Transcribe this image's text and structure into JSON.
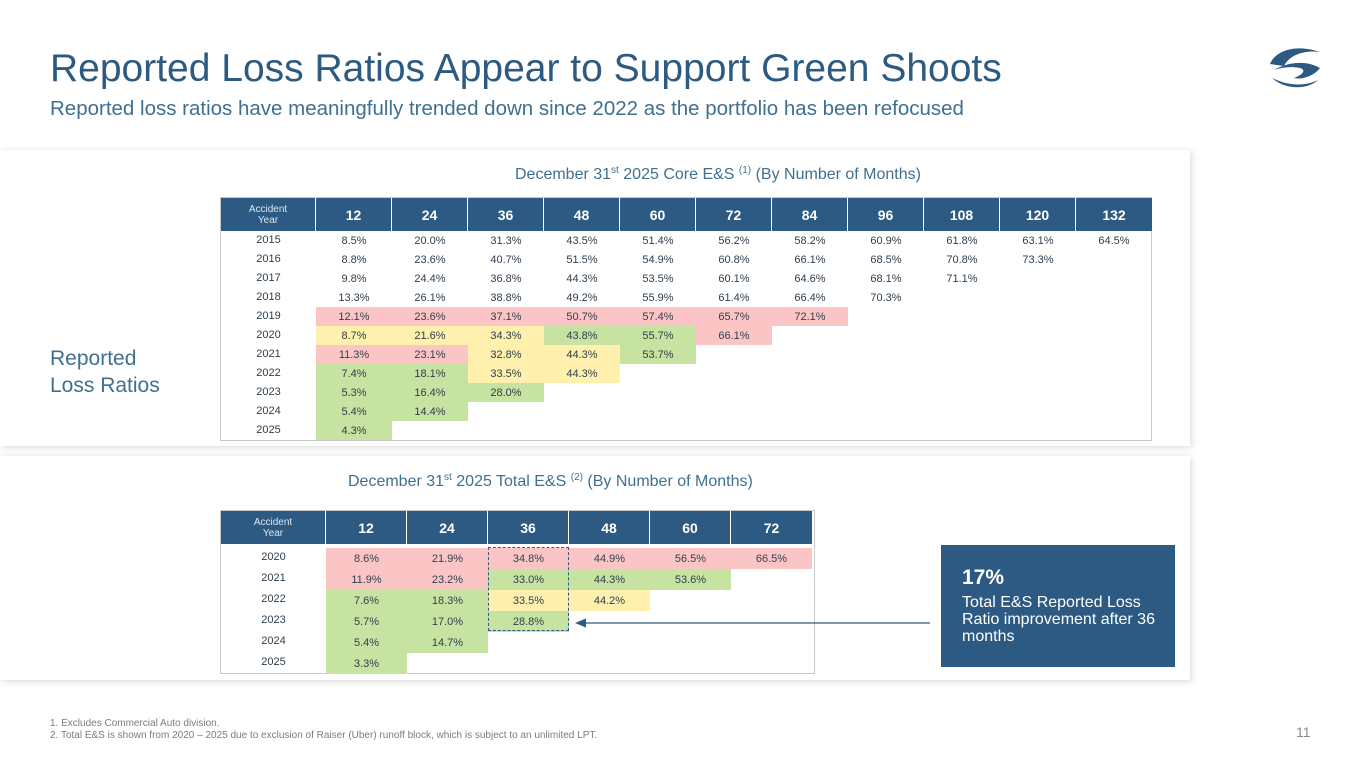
{
  "header": {
    "title": "Reported Loss Ratios Appear to Support Green Shoots",
    "subtitle": "Reported loss ratios have meaningfully trended down since 2022 as the portfolio has been refocused"
  },
  "side_label": {
    "line1": "Reported",
    "line2": "Loss Ratios"
  },
  "colors": {
    "navy": "#2c5a82",
    "red": "#fcc5c5",
    "yellow": "#fff0ad",
    "green": "#c7e3a1"
  },
  "logo": {
    "icon": "wave-s-logo-icon"
  },
  "core_table": {
    "caption_pre": "December 31",
    "caption_sup": "st",
    "caption_mid": " 2025 Core E&S ",
    "caption_ref": "(1)",
    "caption_post": " (By Number of Months)",
    "first_header_line1": "Accident",
    "first_header_line2": "Year",
    "columns": [
      "12",
      "24",
      "36",
      "48",
      "60",
      "72",
      "84",
      "96",
      "108",
      "120",
      "132"
    ],
    "rows": [
      {
        "year": "2015",
        "values": [
          "8.5%",
          "20.0%",
          "31.3%",
          "43.5%",
          "51.4%",
          "56.2%",
          "58.2%",
          "60.9%",
          "61.8%",
          "63.1%",
          "64.5%"
        ],
        "colors": [
          "",
          "",
          "",
          "",
          "",
          "",
          "",
          "",
          "",
          "",
          ""
        ]
      },
      {
        "year": "2016",
        "values": [
          "8.8%",
          "23.6%",
          "40.7%",
          "51.5%",
          "54.9%",
          "60.8%",
          "66.1%",
          "68.5%",
          "70.8%",
          "73.3%"
        ],
        "colors": [
          "",
          "",
          "",
          "",
          "",
          "",
          "",
          "",
          "",
          ""
        ]
      },
      {
        "year": "2017",
        "values": [
          "9.8%",
          "24.4%",
          "36.8%",
          "44.3%",
          "53.5%",
          "60.1%",
          "64.6%",
          "68.1%",
          "71.1%"
        ],
        "colors": [
          "",
          "",
          "",
          "",
          "",
          "",
          "",
          "",
          ""
        ]
      },
      {
        "year": "2018",
        "values": [
          "13.3%",
          "26.1%",
          "38.8%",
          "49.2%",
          "55.9%",
          "61.4%",
          "66.4%",
          "70.3%"
        ],
        "colors": [
          "",
          "",
          "",
          "",
          "",
          "",
          "",
          ""
        ]
      },
      {
        "year": "2019",
        "values": [
          "12.1%",
          "23.6%",
          "37.1%",
          "50.7%",
          "57.4%",
          "65.7%",
          "72.1%"
        ],
        "colors": [
          "red",
          "red",
          "red",
          "red",
          "red",
          "red",
          "red"
        ]
      },
      {
        "year": "2020",
        "values": [
          "8.7%",
          "21.6%",
          "34.3%",
          "43.8%",
          "55.7%",
          "66.1%"
        ],
        "colors": [
          "yellow",
          "yellow",
          "yellow",
          "green",
          "green",
          "red"
        ]
      },
      {
        "year": "2021",
        "values": [
          "11.3%",
          "23.1%",
          "32.8%",
          "44.3%",
          "53.7%"
        ],
        "colors": [
          "red",
          "red",
          "yellow",
          "yellow",
          "green"
        ]
      },
      {
        "year": "2022",
        "values": [
          "7.4%",
          "18.1%",
          "33.5%",
          "44.3%"
        ],
        "colors": [
          "green",
          "green",
          "yellow",
          "yellow"
        ]
      },
      {
        "year": "2023",
        "values": [
          "5.3%",
          "16.4%",
          "28.0%"
        ],
        "colors": [
          "green",
          "green",
          "green"
        ]
      },
      {
        "year": "2024",
        "values": [
          "5.4%",
          "14.4%"
        ],
        "colors": [
          "green",
          "green"
        ]
      },
      {
        "year": "2025",
        "values": [
          "4.3%"
        ],
        "colors": [
          "green"
        ]
      }
    ]
  },
  "total_table": {
    "caption_pre": "December 31",
    "caption_sup": "st",
    "caption_mid": " 2025 Total E&S ",
    "caption_ref": "(2)",
    "caption_post": " (By Number of Months)",
    "first_header_line1": "Accident",
    "first_header_line2": "Year",
    "columns": [
      "12",
      "24",
      "36",
      "48",
      "60",
      "72"
    ],
    "rows": [
      {
        "year": "2020",
        "values": [
          "8.6%",
          "21.9%",
          "34.8%",
          "44.9%",
          "56.5%",
          "66.5%"
        ],
        "colors": [
          "red",
          "red",
          "red",
          "red",
          "red",
          "red"
        ]
      },
      {
        "year": "2021",
        "values": [
          "11.9%",
          "23.2%",
          "33.0%",
          "44.3%",
          "53.6%"
        ],
        "colors": [
          "red",
          "red",
          "green",
          "green",
          "green"
        ]
      },
      {
        "year": "2022",
        "values": [
          "7.6%",
          "18.3%",
          "33.5%",
          "44.2%"
        ],
        "colors": [
          "green",
          "green",
          "yellow",
          "yellow"
        ]
      },
      {
        "year": "2023",
        "values": [
          "5.7%",
          "17.0%",
          "28.8%"
        ],
        "colors": [
          "green",
          "green",
          "green"
        ]
      },
      {
        "year": "2024",
        "values": [
          "5.4%",
          "14.7%"
        ],
        "colors": [
          "green",
          "green"
        ]
      },
      {
        "year": "2025",
        "values": [
          "3.3%"
        ],
        "colors": [
          "green"
        ]
      }
    ]
  },
  "callout": {
    "percent": "17%",
    "text": "Total E&S Reported Loss Ratio improvement after 36 months"
  },
  "footnotes": {
    "note1": "1.  Excludes Commercial Auto division.",
    "note2": "2.  Total E&S is shown from  2020 – 2025 due to exclusion of Raiser (Uber) runoff block, which is subject to an unlimited LPT."
  },
  "page_number": "11"
}
